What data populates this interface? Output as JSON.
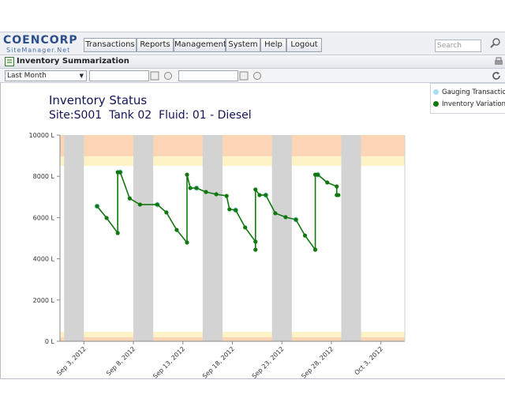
{
  "header": {
    "logo": "COENCORP",
    "logo_sub": "SiteManager.Net",
    "nav": [
      "Transactions",
      "Reports",
      "Management",
      "System",
      "Help",
      "Logout"
    ],
    "search_placeholder": "Search"
  },
  "panel": {
    "title": "Inventory Summarization",
    "period": "Last Month"
  },
  "chart_data": {
    "type": "line",
    "title": "Inventory Status",
    "subtitle": "Site:S001  Tank 02  Fluid: 01 - Diesel",
    "xlim": [
      "2012-08-31T14:00",
      "2012-10-05T10:00"
    ],
    "xticks": [
      {
        "value": "2012-09-03",
        "label": "Sep 3, 2012"
      },
      {
        "value": "2012-09-08",
        "label": "Sep 8, 2012"
      },
      {
        "value": "2012-09-13",
        "label": "Sep 13, 2012"
      },
      {
        "value": "2012-09-18",
        "label": "Sep 18, 2012"
      },
      {
        "value": "2012-09-23",
        "label": "Sep 23, 2012"
      },
      {
        "value": "2012-09-28",
        "label": "Sep 28, 2012"
      },
      {
        "value": "2012-10-03",
        "label": "Oct 3, 2012"
      }
    ],
    "ylim": [
      0,
      10000
    ],
    "yticks": [
      {
        "value": 0,
        "label": "0 L"
      },
      {
        "value": 2000,
        "label": "2000 L"
      },
      {
        "value": 4000,
        "label": "4000 L"
      },
      {
        "value": 6000,
        "label": "6000 L"
      },
      {
        "value": 8000,
        "label": "8000 L"
      },
      {
        "value": 10000,
        "label": "10000 L"
      }
    ],
    "grid": false,
    "shaded_x_ranges": {
      "color": "#d3d3d3",
      "ranges": [
        [
          "2012-09-01",
          "2012-09-03"
        ],
        [
          "2012-09-08",
          "2012-09-10"
        ],
        [
          "2012-09-15",
          "2012-09-17"
        ],
        [
          "2012-09-22",
          "2012-09-24"
        ],
        [
          "2012-09-29",
          "2012-10-01"
        ]
      ]
    },
    "y_zones": [
      {
        "from": 8970,
        "to": 10000,
        "color": "#fcd5b4"
      },
      {
        "from": 8510,
        "to": 8970,
        "color": "#fdf3c6"
      },
      {
        "from": 190,
        "to": 460,
        "color": "#fdf3c6"
      },
      {
        "from": 0,
        "to": 190,
        "color": "#fcd5b4"
      }
    ],
    "series": [
      {
        "name": "Gauging Transactions",
        "color": "#a9def2",
        "mode": "markers",
        "x": [
          "2012-09-04T08:00",
          "2012-09-06T16:00",
          "2012-09-10T10:00",
          "2012-09-14T09:00",
          "2012-09-18T08:00",
          "2012-09-21T09:00",
          "2012-09-24T10:00",
          "2012-09-26T15:00"
        ],
        "values": [
          6550,
          8200,
          6630,
          7430,
          6360,
          7090,
          5900,
          8080
        ]
      },
      {
        "name": "Inventory Variations",
        "color": "#11780f",
        "mode": "lines+markers",
        "x": [
          "2012-09-04T08:00",
          "2012-09-05T07:00",
          "2012-09-06T10:00",
          "2012-09-06T10:00",
          "2012-09-06T16:00",
          "2012-09-07T15:00",
          "2012-09-08T16:00",
          "2012-09-10T10:00",
          "2012-09-11T08:00",
          "2012-09-12T09:00",
          "2012-09-13T10:00",
          "2012-09-13T10:00",
          "2012-09-13T18:00",
          "2012-09-14T09:00",
          "2012-09-15T08:00",
          "2012-09-16T09:00",
          "2012-09-17T10:00",
          "2012-09-17T17:00",
          "2012-09-18T08:00",
          "2012-09-19T07:00",
          "2012-09-20T08:00",
          "2012-09-20T08:00",
          "2012-09-20T08:00",
          "2012-09-20T18:00",
          "2012-09-21T09:00",
          "2012-09-22T08:00",
          "2012-09-23T09:00",
          "2012-09-24T10:00",
          "2012-09-25T08:00",
          "2012-09-26T09:00",
          "2012-09-26T09:00",
          "2012-09-26T15:00",
          "2012-09-27T14:00",
          "2012-09-28T13:00",
          "2012-09-28T13:00",
          "2012-09-28T17:00"
        ],
        "values": [
          6550,
          5980,
          5250,
          8200,
          8200,
          6930,
          6630,
          6630,
          6250,
          5400,
          4790,
          8080,
          7430,
          7430,
          7240,
          7130,
          7050,
          6400,
          6360,
          5520,
          4830,
          4440,
          7360,
          7090,
          7090,
          6210,
          6020,
          5900,
          5130,
          4440,
          8080,
          8080,
          7700,
          7510,
          7090,
          7090
        ]
      }
    ],
    "legend_position": "top-right"
  }
}
